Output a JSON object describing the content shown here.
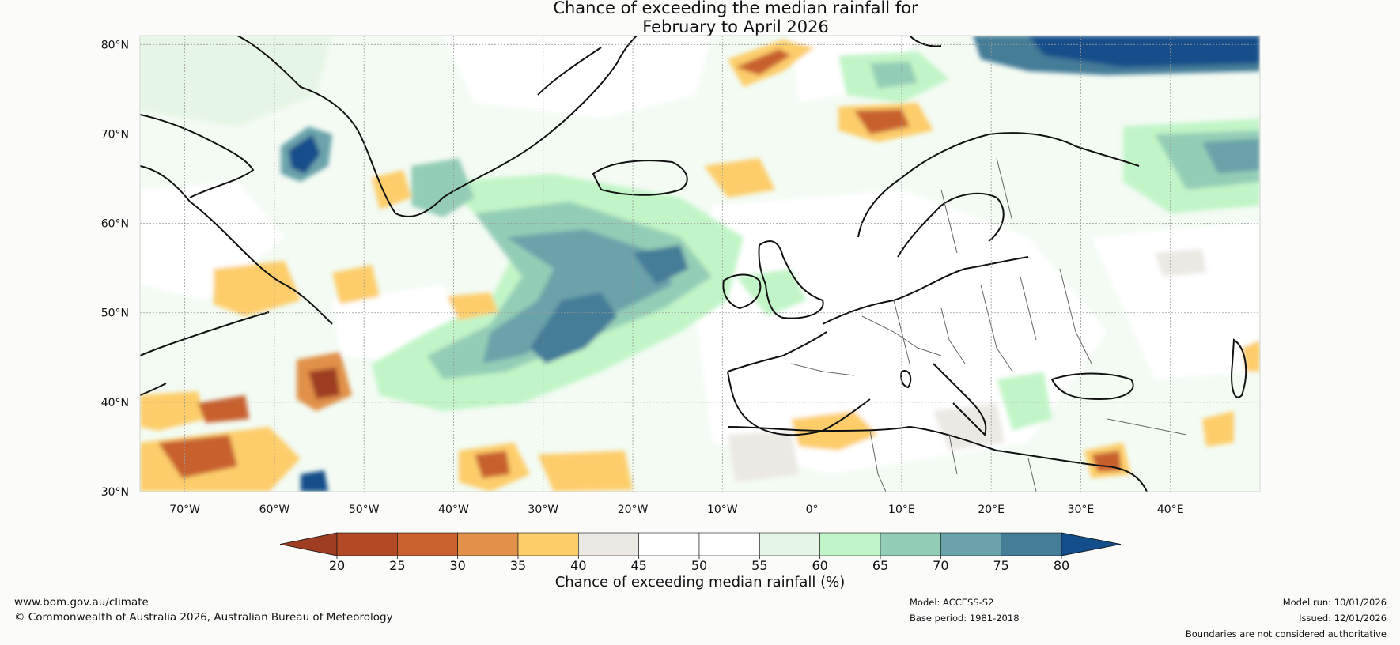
{
  "title": {
    "line1": "Chance of exceeding the median rainfall for",
    "line2": "February to April 2026"
  },
  "map": {
    "lat_labels": [
      "80°N",
      "70°N",
      "60°N",
      "50°N",
      "40°N",
      "30°N"
    ],
    "lon_labels": [
      "70°W",
      "60°W",
      "50°W",
      "40°W",
      "30°W",
      "20°W",
      "10°W",
      "0°",
      "10°E",
      "20°E",
      "30°E",
      "40°E"
    ],
    "extent": {
      "lon_min": -75,
      "lon_max": 50,
      "lat_min": 30,
      "lat_max": 81
    }
  },
  "colorbar": {
    "ticks": [
      "20",
      "25",
      "30",
      "35",
      "40",
      "45",
      "50",
      "55",
      "60",
      "65",
      "70",
      "75",
      "80"
    ],
    "colors": [
      "#9e3d21",
      "#b24a26",
      "#c8612f",
      "#e1914a",
      "#fdcd6a",
      "#ece8e3",
      "#ffffff",
      "#ffffff",
      "#e6f6e6",
      "#c1f5c7",
      "#94cdb6",
      "#6ba3aa",
      "#457c98",
      "#134e8a"
    ],
    "label": "Chance of exceeding median rainfall (%)"
  },
  "footer": {
    "website": "www.bom.gov.au/climate",
    "copyright": "© Commonwealth of Australia 2026, Australian Bureau of Meteorology",
    "model": "Model: ACCESS-S2",
    "base_period": "Base period: 1981-2018",
    "model_run": "Model run: 10/01/2026",
    "issued": "Issued: 12/01/2026",
    "disclaimer": "Boundaries are not considered authoritative"
  }
}
